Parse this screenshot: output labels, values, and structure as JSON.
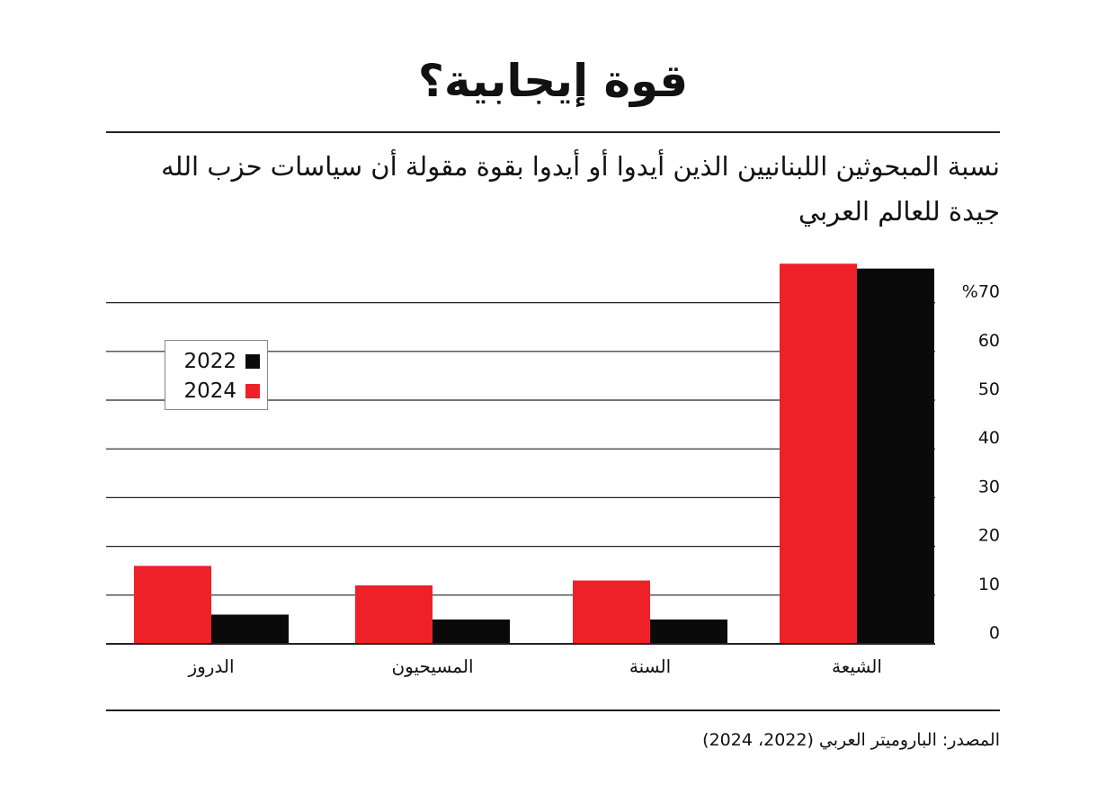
{
  "title": "قوة إيجابية؟",
  "subtitle": "نسبة المبحوثين اللبنانيين الذين أيدوا أو أيدوا بقوة مقولة أن سياسات حزب الله جيدة للعالم العربي",
  "source": "المصدر: الباروميتر العربي (2022، 2024)",
  "colors": {
    "2024": "#ee2129",
    "2022": "#0a0a0a",
    "grid": "#222222"
  },
  "legend": [
    {
      "label": "2022",
      "color": "#0a0a0a"
    },
    {
      "label": "2024",
      "color": "#ee2129"
    }
  ],
  "chart_data": {
    "type": "bar",
    "categories": [
      "الشيعة",
      "السنة",
      "المسيحيون",
      "الدروز"
    ],
    "series": [
      {
        "name": "2024",
        "values": [
          78,
          13,
          12,
          16
        ]
      },
      {
        "name": "2022",
        "values": [
          77,
          5,
          5,
          6
        ]
      }
    ],
    "y_ticks": [
      {
        "value": 0,
        "label": "0"
      },
      {
        "value": 10,
        "label": "10"
      },
      {
        "value": 20,
        "label": "20"
      },
      {
        "value": 30,
        "label": "30"
      },
      {
        "value": 40,
        "label": "40"
      },
      {
        "value": 50,
        "label": "50"
      },
      {
        "value": 60,
        "label": "60"
      },
      {
        "value": 70,
        "label": "%70"
      }
    ],
    "ylim": [
      0,
      80
    ],
    "grid": true,
    "legend_position": "top-left"
  }
}
